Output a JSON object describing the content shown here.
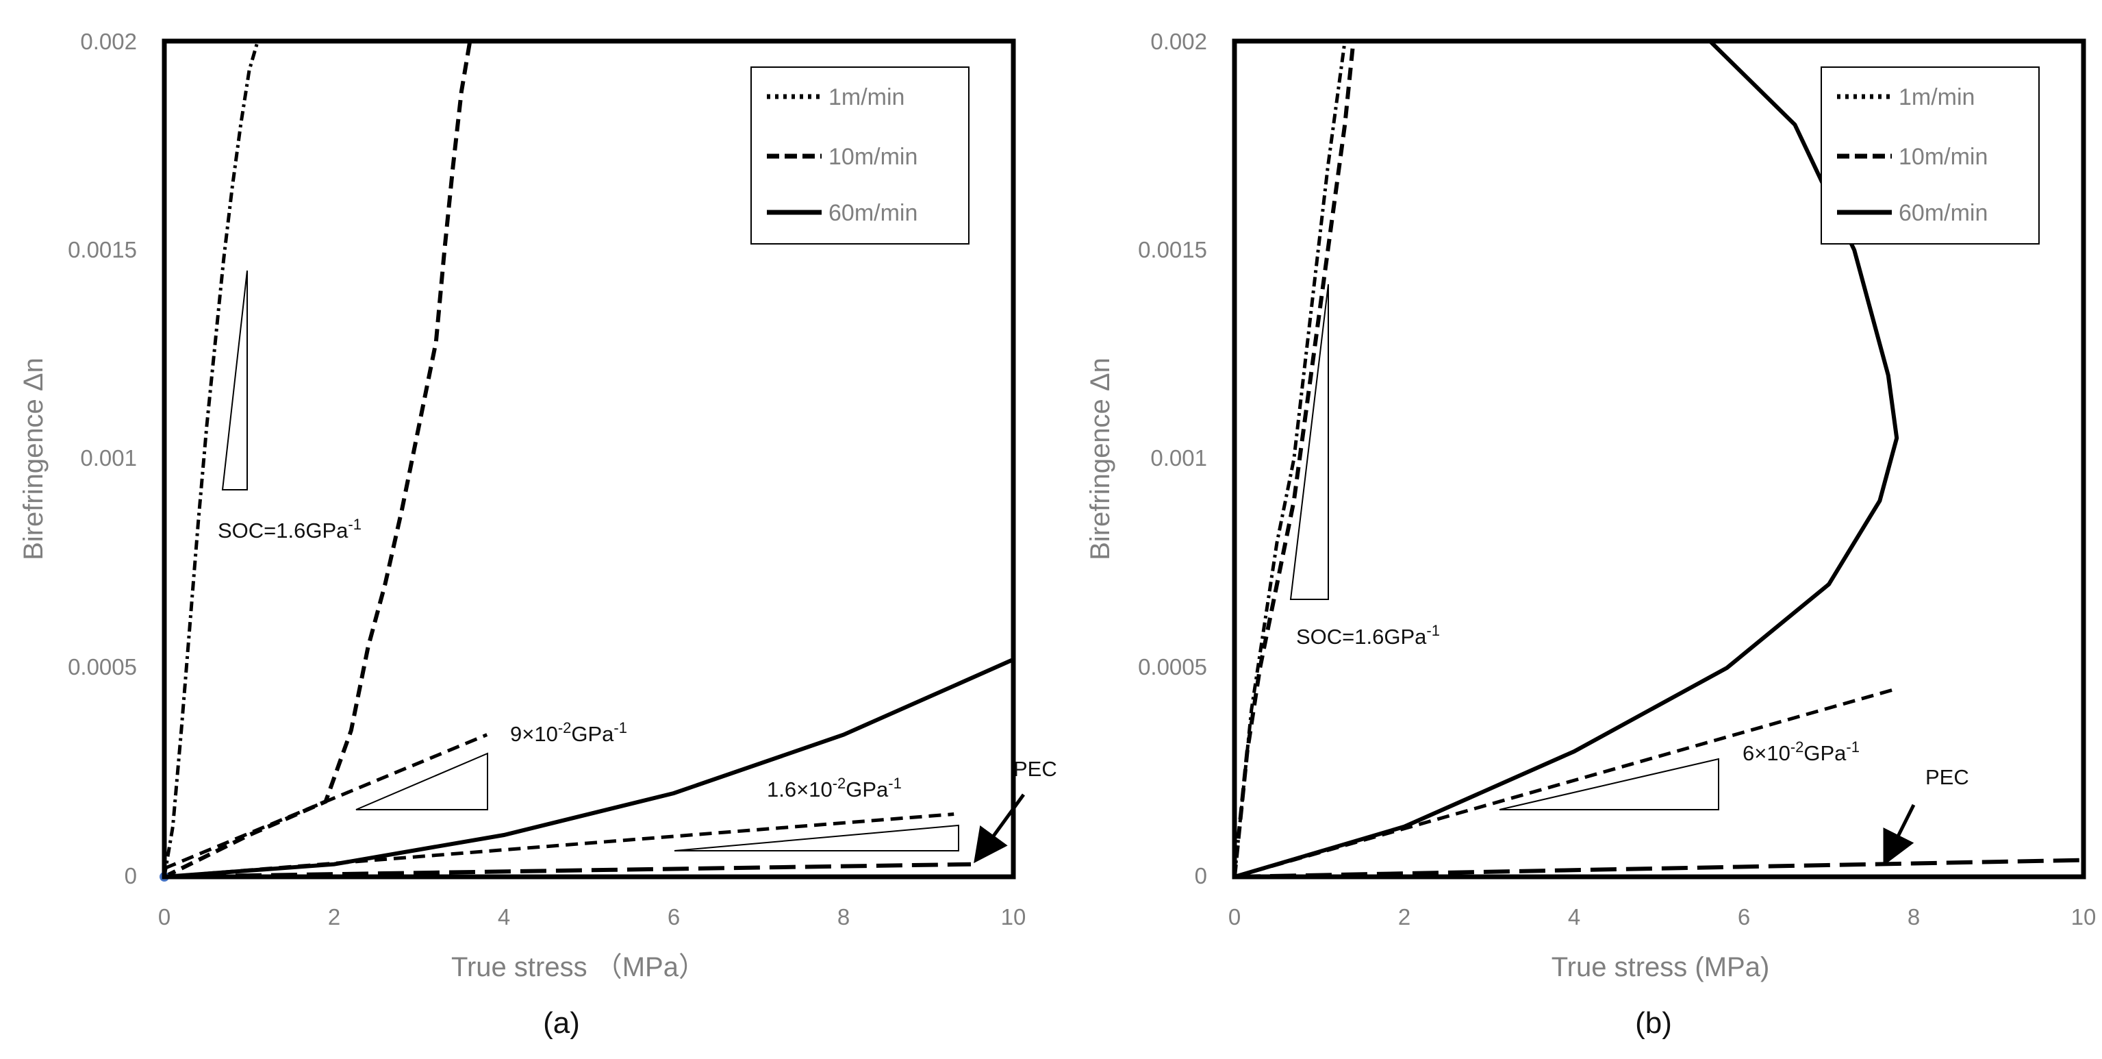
{
  "colors": {
    "frame": "#000000",
    "text": "#7f7f7f",
    "curve": "#000000",
    "origin_dot": "#4472c4"
  },
  "chart_data": [
    {
      "type": "line",
      "panel_label": "(a)",
      "xlabel": "True stress （MPa）",
      "ylabel": "Birefringence Δn",
      "xlim": [
        0,
        10
      ],
      "ylim": [
        0,
        0.002
      ],
      "x_ticks": [
        0,
        2,
        4,
        6,
        8,
        10
      ],
      "x_tick_labels": [
        "0",
        "2",
        "4",
        "6",
        "8",
        "10"
      ],
      "y_ticks": [
        0,
        0.0005,
        0.001,
        0.0015,
        0.002
      ],
      "y_tick_labels": [
        "0",
        "0.0005",
        "0.001",
        "0.0015",
        "0.002"
      ],
      "legend": [
        "1m/min",
        "10m/min",
        "60m/min"
      ],
      "series": [
        {
          "name": "1m/min",
          "style": "dashdot",
          "x": [
            0,
            0.1,
            0.2,
            0.3,
            0.4,
            0.5,
            0.6,
            0.7,
            0.8,
            0.9,
            1.0,
            1.1
          ],
          "y": [
            0,
            0.00012,
            0.00035,
            0.0006,
            0.00085,
            0.00108,
            0.00128,
            0.00148,
            0.00165,
            0.0018,
            0.00193,
            0.002
          ]
        },
        {
          "name": "10m/min",
          "style": "dash",
          "x": [
            0,
            1.0,
            1.9,
            2.2,
            2.4,
            2.6,
            2.8,
            3.0,
            3.2,
            3.3,
            3.4,
            3.5,
            3.6
          ],
          "y": [
            0,
            0.0001,
            0.00018,
            0.00035,
            0.00055,
            0.0007,
            0.00088,
            0.00108,
            0.00128,
            0.0015,
            0.0017,
            0.00188,
            0.002
          ]
        },
        {
          "name": "60m/min",
          "style": "solid",
          "x": [
            0,
            2,
            4,
            6,
            8,
            10
          ],
          "y": [
            0,
            3e-05,
            0.0001,
            0.0002,
            0.00034,
            0.00052
          ]
        },
        {
          "name": "PEC",
          "style": "longdash",
          "x": [
            0,
            9.5
          ],
          "y": [
            0,
            3e-05
          ]
        },
        {
          "name": "slope 9×10⁻²GPa⁻¹",
          "style": "dash",
          "x": [
            0,
            3.8
          ],
          "y": [
            2e-05,
            0.00034
          ]
        },
        {
          "name": "slope 1.6×10⁻²GPa⁻¹",
          "style": "dash",
          "x": [
            0,
            9.3
          ],
          "y": [
            0,
            0.00015
          ]
        }
      ],
      "annotations": {
        "soc_prefix": "SOC=1.6GPa",
        "soc_superscript": "-1",
        "slope1_prefix": "9×10",
        "slope1_exp": "-2",
        "slope1_unit": "GPa",
        "slope1_unit_exp": "-1",
        "slope2_prefix": "1.6×10",
        "slope2_exp": "-2",
        "slope2_unit": "GPa",
        "slope2_unit_exp": "-1",
        "pec": "PEC"
      }
    },
    {
      "type": "line",
      "panel_label": "(b)",
      "xlabel": "True stress (MPa)",
      "ylabel": "Birefringence Δn",
      "xlim": [
        0,
        10
      ],
      "ylim": [
        0,
        0.002
      ],
      "x_ticks": [
        0,
        2,
        4,
        6,
        8,
        10
      ],
      "x_tick_labels": [
        "0",
        "2",
        "4",
        "6",
        "8",
        "10"
      ],
      "y_ticks": [
        0,
        0.0005,
        0.001,
        0.0015,
        0.002
      ],
      "y_tick_labels": [
        "0",
        "0.0005",
        "0.001",
        "0.0015",
        "0.002"
      ],
      "legend": [
        "1m/min",
        "10m/min",
        "60m/min"
      ],
      "series": [
        {
          "name": "1m/min",
          "style": "dashdot",
          "x": [
            0,
            0.1,
            0.2,
            0.35,
            0.5,
            0.7,
            0.9,
            1.1,
            1.3
          ],
          "y": [
            0,
            0.0002,
            0.0004,
            0.0006,
            0.0008,
            0.001,
            0.00135,
            0.0017,
            0.002
          ]
        },
        {
          "name": "10m/min",
          "style": "dash",
          "x": [
            0,
            0.15,
            0.3,
            0.5,
            0.7,
            0.9,
            1.1,
            1.3,
            1.4
          ],
          "y": [
            0,
            0.0003,
            0.0005,
            0.0007,
            0.0009,
            0.0012,
            0.0015,
            0.0018,
            0.002
          ]
        },
        {
          "name": "60m/min",
          "style": "solid",
          "x": [
            0,
            2,
            4,
            5.8,
            7.0,
            7.6,
            7.8,
            7.7,
            7.3,
            6.6,
            5.6
          ],
          "y": [
            0,
            0.00012,
            0.0003,
            0.0005,
            0.0007,
            0.0009,
            0.00105,
            0.0012,
            0.0015,
            0.0018,
            0.002
          ]
        },
        {
          "name": "PEC",
          "style": "longdash",
          "x": [
            0,
            10
          ],
          "y": [
            0,
            4e-05
          ]
        },
        {
          "name": "slope 6×10⁻²GPa⁻¹",
          "style": "dash",
          "x": [
            0,
            7.8
          ],
          "y": [
            0,
            0.00045
          ]
        }
      ],
      "annotations": {
        "soc_prefix": "SOC=1.6GPa",
        "soc_superscript": "-1",
        "slope1_prefix": "6×10",
        "slope1_exp": "-2",
        "slope1_unit": "GPa",
        "slope1_unit_exp": "-1",
        "pec": "PEC"
      }
    }
  ]
}
